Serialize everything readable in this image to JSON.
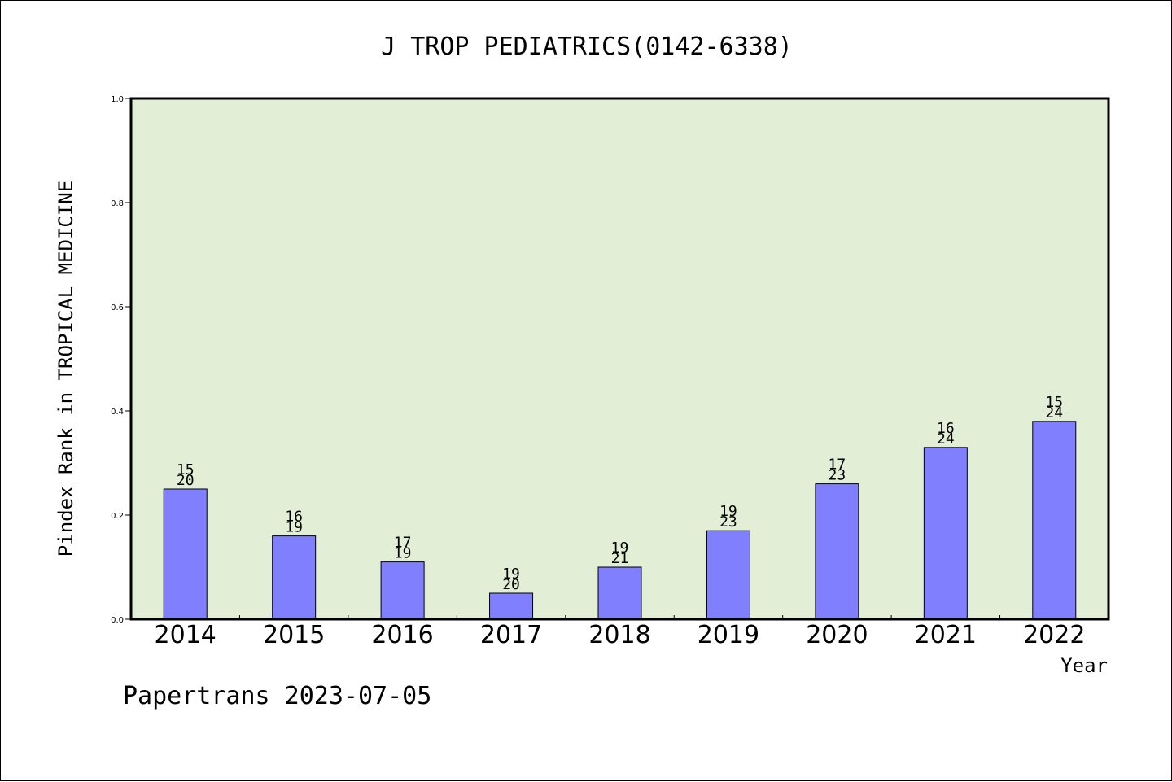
{
  "chart_data": {
    "type": "bar",
    "title": "J TROP PEDIATRICS(0142-6338)",
    "ylabel": "Pindex Rank in TROPICAL MEDICINE",
    "xlabel": "Year",
    "ylim": [
      0,
      1.0
    ],
    "yticks": [
      "0.0",
      "0.2",
      "0.4",
      "0.6",
      "0.8",
      "1.0"
    ],
    "categories": [
      "2014",
      "2015",
      "2016",
      "2017",
      "2018",
      "2019",
      "2020",
      "2021",
      "2022"
    ],
    "values": [
      0.25,
      0.16,
      0.11,
      0.05,
      0.1,
      0.17,
      0.26,
      0.33,
      0.38
    ],
    "rank_labels": [
      [
        "15",
        "20"
      ],
      [
        "16",
        "19"
      ],
      [
        "17",
        "19"
      ],
      [
        "19",
        "20"
      ],
      [
        "19",
        "21"
      ],
      [
        "19",
        "23"
      ],
      [
        "17",
        "23"
      ],
      [
        "16",
        "24"
      ],
      [
        "15",
        "24"
      ]
    ],
    "colors": {
      "plot_background": "#e2efd6",
      "bar_fill": "#8080ff",
      "axis": "#000000"
    },
    "grid": false
  },
  "footer": {
    "text": "Papertrans 2023-07-05"
  }
}
